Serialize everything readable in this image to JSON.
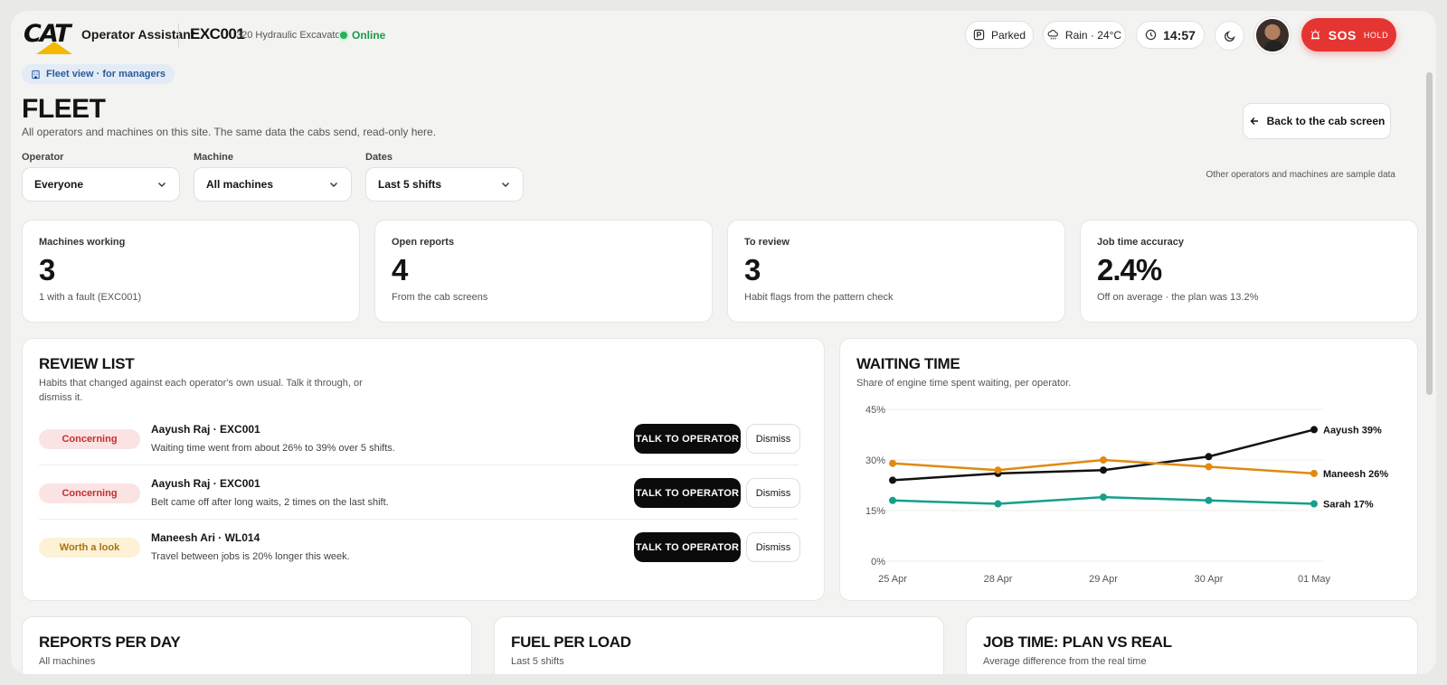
{
  "header": {
    "brand": "CAT",
    "app_name": "Operator Assistant",
    "machine_id": "EXC001",
    "machine_model": "320 Hydraulic Excavator",
    "status": "Online",
    "park_state": "Parked",
    "weather": "Rain · 24°C",
    "clock": "14:57",
    "sos_label": "SOS",
    "sos_hint": "HOLD",
    "colors": {
      "sos": "#e53532",
      "online": "#23b35a"
    }
  },
  "page": {
    "badge": "Fleet view · for managers",
    "title": "FLEET",
    "subtitle": "All operators and machines on this site. The same data the cabs send, read-only here.",
    "back_button": "Back to the cab screen",
    "sample_note": "Other operators and machines are sample data"
  },
  "filters": [
    {
      "label": "Operator",
      "value": "Everyone"
    },
    {
      "label": "Machine",
      "value": "All machines"
    },
    {
      "label": "Dates",
      "value": "Last 5 shifts"
    }
  ],
  "stats": [
    {
      "label": "Machines working",
      "value": "3",
      "note": "1 with a fault (EXC001)"
    },
    {
      "label": "Open reports",
      "value": "4",
      "note": "From the cab screens"
    },
    {
      "label": "To review",
      "value": "3",
      "note": "Habit flags from the pattern check"
    },
    {
      "label": "Job time accuracy",
      "value": "2.4%",
      "note": "Off on average · the plan was 13.2%"
    }
  ],
  "review": {
    "title": "REVIEW LIST",
    "subtitle_line1": "Habits that changed against each operator's own usual. Talk it through, or",
    "subtitle_line2": "dismiss it.",
    "talk_label": "TALK TO OPERATOR",
    "dismiss_label": "Dismiss",
    "items": [
      {
        "severity": "Concerning",
        "name": "Aayush Raj · EXC001",
        "detail": "Waiting time went from about 26% to 39% over 5 shifts."
      },
      {
        "severity": "Concerning",
        "name": "Aayush Raj · EXC001",
        "detail": "Belt came off after long waits, 2 times on the last shift."
      },
      {
        "severity": "Worth a look",
        "name": "Maneesh Ari · WL014",
        "detail": "Travel between jobs is 20% longer this week."
      }
    ]
  },
  "waiting": {
    "title": "WAITING TIME",
    "subtitle": "Share of engine time spent waiting, per operator."
  },
  "chart_data": {
    "type": "line",
    "title": "WAITING TIME",
    "subtitle": "Share of engine time spent waiting, per operator.",
    "x": [
      "25 Apr",
      "28 Apr",
      "29 Apr",
      "30 Apr",
      "01 May"
    ],
    "y_ticks": [
      "0%",
      "15%",
      "30%",
      "45%"
    ],
    "ylim": [
      0,
      45
    ],
    "grid": true,
    "series": [
      {
        "name": "Aayush",
        "end_label": "Aayush 39%",
        "color": "#111111",
        "values": [
          24,
          26,
          27,
          31,
          39
        ]
      },
      {
        "name": "Maneesh",
        "end_label": "Maneesh 26%",
        "color": "#e08a10",
        "values": [
          29,
          27,
          30,
          28,
          26
        ]
      },
      {
        "name": "Sarah",
        "end_label": "Sarah 17%",
        "color": "#14a08c",
        "values": [
          18,
          17,
          19,
          18,
          17
        ]
      }
    ]
  },
  "bottom_cards": [
    {
      "title": "REPORTS PER DAY",
      "subtitle": "All machines"
    },
    {
      "title": "FUEL PER LOAD",
      "subtitle": "Last 5 shifts"
    },
    {
      "title": "JOB TIME: PLAN VS REAL",
      "subtitle": "Average difference from the real time"
    }
  ]
}
